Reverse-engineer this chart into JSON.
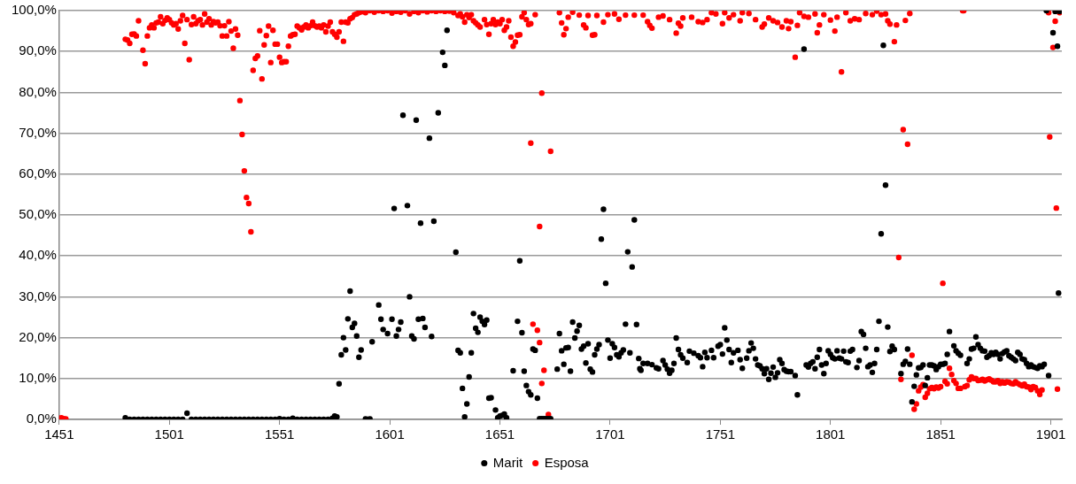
{
  "chart_data": {
    "type": "scatter",
    "xlim": [
      1451,
      1906
    ],
    "xticks": [
      1451,
      1501,
      1551,
      1601,
      1651,
      1701,
      1751,
      1801,
      1851,
      1901
    ],
    "ylim": [
      0,
      100
    ],
    "yticks": [
      {
        "value": 0,
        "label": "0,0%"
      },
      {
        "value": 10,
        "label": "10,0%"
      },
      {
        "value": 20,
        "label": "20,0%"
      },
      {
        "value": 30,
        "label": "30,0%"
      },
      {
        "value": 40,
        "label": "40,0%"
      },
      {
        "value": 50,
        "label": "50,0%"
      },
      {
        "value": 60,
        "label": "60,0%"
      },
      {
        "value": 70,
        "label": "70,0%"
      },
      {
        "value": 80,
        "label": "80,0%"
      },
      {
        "value": 90,
        "label": "90,0%"
      },
      {
        "value": 100,
        "label": "100,0%"
      }
    ],
    "grid": "y",
    "legend": "bottom",
    "marker": "circle",
    "series": [
      {
        "name": "Marit",
        "color": "#000000",
        "x": [
          1481,
          1483,
          1485,
          1487,
          1489,
          1491,
          1493,
          1495,
          1497,
          1499,
          1501,
          1503,
          1505,
          1507,
          1509,
          1511,
          1513,
          1515,
          1517,
          1519,
          1521,
          1523,
          1525,
          1527,
          1529,
          1531,
          1533,
          1535,
          1537,
          1539,
          1541,
          1543,
          1545,
          1547,
          1549,
          1551,
          1553,
          1555,
          1557,
          1559,
          1561,
          1563,
          1565,
          1567,
          1569,
          1571,
          1573,
          1575,
          1576,
          1577,
          1578,
          1579,
          1580,
          1581,
          1582,
          1583,
          1584,
          1585,
          1586,
          1587,
          1588,
          1590,
          1591,
          1592,
          1593,
          1596,
          1597,
          1598,
          1600,
          1602,
          1603,
          1604,
          1605,
          1606,
          1607,
          1609,
          1610,
          1611,
          1612,
          1613,
          1614,
          1615,
          1616,
          1617,
          1619,
          1620,
          1621,
          1623,
          1625,
          1626,
          1627,
          1631,
          1632,
          1633,
          1634,
          1635,
          1636,
          1637,
          1638,
          1639,
          1640,
          1641,
          1642,
          1643,
          1644,
          1645,
          1646,
          1647,
          1649,
          1650,
          1651,
          1652,
          1653,
          1654,
          1657,
          1659,
          1660,
          1661,
          1662,
          1663,
          1664,
          1665,
          1666,
          1667,
          1668,
          1669,
          1670,
          1671,
          1672,
          1673,
          1674,
          1677,
          1678,
          1679,
          1680,
          1681,
          1682,
          1683,
          1684,
          1685,
          1686,
          1687,
          1688,
          1689,
          1690,
          1691,
          1692,
          1693,
          1694,
          1695,
          1696,
          1697,
          1698,
          1699,
          1700,
          1701,
          1702,
          1703,
          1704,
          1705,
          1706,
          1707,
          1708,
          1709,
          1710,
          1711,
          1712,
          1713,
          1714,
          1714.5,
          1715,
          1716,
          1718,
          1720,
          1722,
          1723,
          1725,
          1726,
          1727,
          1728,
          1729,
          1730,
          1731,
          1732,
          1733,
          1734,
          1736,
          1737,
          1739,
          1741,
          1742,
          1743,
          1744,
          1745,
          1747,
          1748,
          1750,
          1751,
          1752,
          1753,
          1754,
          1755,
          1756,
          1757,
          1759,
          1760,
          1761,
          1763,
          1764,
          1765,
          1766,
          1767,
          1768,
          1769,
          1770,
          1771,
          1772,
          1773,
          1774,
          1775,
          1776,
          1777,
          1778,
          1779,
          1780,
          1781,
          1782,
          1783,
          1785,
          1786,
          1789,
          1790,
          1791,
          1792,
          1793,
          1794,
          1795,
          1796,
          1797,
          1798,
          1799,
          1800,
          1801,
          1802,
          1803,
          1804,
          1805,
          1806,
          1807,
          1808,
          1809,
          1810,
          1811,
          1813,
          1814,
          1815,
          1816,
          1817,
          1818,
          1819,
          1820,
          1821,
          1822,
          1823,
          1824,
          1825,
          1826,
          1827,
          1828,
          1829,
          1830,
          1833,
          1834,
          1835,
          1836,
          1837,
          1838,
          1839,
          1840,
          1841,
          1842,
          1843,
          1844,
          1845,
          1846,
          1847,
          1848,
          1849,
          1850,
          1851,
          1852,
          1853,
          1854,
          1855,
          1857,
          1858,
          1859,
          1860,
          1863,
          1864,
          1865,
          1866,
          1867,
          1868,
          1869,
          1870,
          1871,
          1872,
          1873,
          1874,
          1875,
          1876,
          1877,
          1878,
          1879,
          1880,
          1881,
          1882,
          1883,
          1884,
          1885,
          1886,
          1887,
          1888,
          1889,
          1890,
          1891,
          1892,
          1893,
          1894,
          1895,
          1896,
          1897,
          1898,
          1899,
          1900,
          1902,
          1903,
          1904,
          1904.5,
          1905
        ],
        "values": [
          0.4,
          0,
          0,
          0,
          0,
          0,
          0,
          0,
          0,
          0,
          0,
          0,
          0,
          0,
          1.5,
          0,
          0,
          0,
          0,
          0,
          0,
          0,
          0,
          0,
          0,
          0,
          0,
          0,
          0,
          0,
          0,
          0,
          0,
          0,
          0,
          0.2,
          0,
          0,
          0.3,
          0,
          0,
          0,
          0,
          0,
          0,
          0,
          0,
          0.3,
          0.8,
          0.6,
          8.7,
          15.8,
          20,
          17,
          24.6,
          31.4,
          22.5,
          23.5,
          20.4,
          15.2,
          17,
          0.1,
          0,
          0.1,
          19,
          28,
          24.5,
          22,
          21,
          24.5,
          51.6,
          20.4,
          22,
          23.8,
          74.4,
          52.3,
          30,
          20.4,
          19.7,
          73.2,
          24.5,
          48,
          24.7,
          22.5,
          68.8,
          20.3,
          48.5,
          75,
          89.8,
          86.6,
          95.2,
          40.9,
          16.9,
          16.3,
          7.6,
          0.6,
          3.8,
          10.4,
          16.3,
          25.9,
          22.3,
          21.3,
          25,
          24,
          23.2,
          24.3,
          5.2,
          5.3,
          2.3,
          0.4,
          0.8,
          1,
          1.3,
          0.4,
          11.9,
          24,
          38.8,
          21.2,
          11.8,
          8.3,
          6.8,
          6,
          17.2,
          16.9,
          5.2,
          0.2,
          0.2,
          0.2,
          0.2,
          0.2,
          0.2,
          12.3,
          21,
          16.8,
          13.5,
          17.5,
          17.6,
          11.8,
          23.8,
          19.9,
          21.6,
          23,
          17.2,
          17.9,
          13.8,
          18.5,
          12.3,
          11.6,
          15.8,
          17.2,
          18.3,
          44.1,
          51.4,
          33.3,
          19.4,
          15,
          18.5,
          17.6,
          15.8,
          15.3,
          16.3,
          17,
          23.3,
          41,
          16.3,
          37.3,
          48.8,
          23.2,
          14.9,
          12.4,
          12,
          13.7,
          13.7,
          13.4,
          12.6,
          12.4,
          14.4,
          13.3,
          12.3,
          11.3,
          12,
          13.7,
          19.9,
          17.1,
          15.8,
          15,
          13.9,
          16.7,
          16.2,
          15.6,
          15.1,
          12.9,
          16.4,
          15.1,
          16.9,
          15.1,
          17.9,
          18.3,
          16,
          22.4,
          19.4,
          17.1,
          13.9,
          16.3,
          16.9,
          14.6,
          12.5,
          15,
          16.8,
          18.7,
          17.4,
          14.8,
          13.3,
          13.1,
          12.4,
          11.2,
          12.4,
          9.8,
          11.3,
          12.8,
          10.3,
          11.4,
          14.6,
          13.7,
          12.2,
          11.8,
          11.7,
          11.7,
          10.7,
          6,
          90.6,
          13.3,
          12.8,
          13.7,
          14.1,
          12.4,
          15.2,
          17.1,
          13.3,
          11.2,
          13.7,
          16.8,
          15.9,
          15.1,
          14.8,
          16.8,
          15,
          14.8,
          16.7,
          14.1,
          13.9,
          16.7,
          17.1,
          12.7,
          14.4,
          21.5,
          20.8,
          17.4,
          12.9,
          13.3,
          11.5,
          13.7,
          17.1,
          24,
          45.4,
          91.5,
          57.3,
          22.6,
          16.6,
          17.9,
          17.1,
          11.2,
          13.5,
          14.2,
          17.2,
          13.5,
          4.3,
          8.1,
          10.9,
          12.6,
          12.7,
          13.3,
          8.3,
          10.2,
          13.3,
          13.3,
          13.1,
          12.2,
          12.9,
          13.5,
          13.5,
          13.7,
          15.9,
          21.5,
          18,
          16.8,
          16.2,
          15.7,
          13.7,
          14.8,
          17.2,
          17.4,
          20.2,
          18.3,
          17.4,
          16.8,
          16.7,
          15.2,
          15.6,
          16.3,
          15.9,
          16.4,
          15.9,
          14.8,
          16.1,
          16.5,
          16.8,
          15.6,
          15.2,
          14.8,
          14.4,
          16.4,
          15.9,
          14.8,
          14.6,
          13.7,
          12.9,
          13.3,
          12.9,
          12.7,
          12.5,
          13.1,
          12.9,
          13.5,
          100,
          10.7,
          94.6,
          99.8,
          91.3,
          30.9,
          99.8
        ]
      },
      {
        "name": "Esposa",
        "color": "#ff0000",
        "x": [
          1451,
          1452,
          1453,
          1454,
          1481,
          1482,
          1483,
          1484,
          1485,
          1486,
          1487,
          1489,
          1490,
          1491,
          1492,
          1493,
          1494,
          1495,
          1496,
          1497,
          1498,
          1499,
          1500,
          1501,
          1502,
          1503,
          1504,
          1505,
          1506,
          1507,
          1508,
          1509,
          1510,
          1511,
          1512,
          1513,
          1514,
          1515,
          1516,
          1517,
          1518,
          1519,
          1520,
          1521,
          1522,
          1523,
          1524,
          1525,
          1526,
          1527,
          1528,
          1529,
          1530,
          1531,
          1532,
          1533,
          1534,
          1535,
          1536,
          1537,
          1538,
          1539,
          1540,
          1541,
          1542,
          1543,
          1544,
          1545,
          1546,
          1547,
          1548,
          1549,
          1550,
          1551,
          1552,
          1553,
          1554,
          1555,
          1556,
          1557,
          1558,
          1559,
          1560,
          1561,
          1562,
          1563,
          1564,
          1565,
          1566,
          1567,
          1568,
          1569,
          1570,
          1571,
          1572,
          1573,
          1574,
          1575,
          1576,
          1577,
          1578,
          1579,
          1580,
          1581,
          1582,
          1583,
          1584,
          1585,
          1586,
          1587,
          1588,
          1590,
          1592,
          1594,
          1596,
          1598,
          1600,
          1602,
          1604,
          1606,
          1608,
          1610,
          1612,
          1614,
          1616,
          1618,
          1620,
          1622,
          1624,
          1626,
          1628,
          1630,
          1632,
          1633,
          1634,
          1635,
          1636,
          1637,
          1638,
          1639,
          1640,
          1641,
          1642,
          1644,
          1645,
          1646,
          1647,
          1648,
          1649,
          1650,
          1651,
          1652,
          1653,
          1654,
          1655,
          1656,
          1657,
          1658,
          1659,
          1660,
          1661,
          1662,
          1663,
          1664,
          1665,
          1665,
          1666,
          1667,
          1668,
          1669,
          1669,
          1670,
          1670,
          1671,
          1673,
          1674,
          1678,
          1679,
          1680,
          1681,
          1682,
          1684,
          1687,
          1689,
          1690,
          1691,
          1693,
          1694,
          1695,
          1698,
          1700,
          1703,
          1705,
          1708,
          1712,
          1716,
          1718,
          1719,
          1720,
          1723,
          1725,
          1728,
          1731,
          1732,
          1733,
          1734,
          1738,
          1741,
          1743,
          1745,
          1747,
          1749,
          1752,
          1753,
          1755,
          1757,
          1760,
          1761,
          1764,
          1767,
          1770,
          1771,
          1773,
          1775,
          1777,
          1779,
          1781,
          1782,
          1783,
          1785,
          1786,
          1787,
          1789,
          1791,
          1794,
          1795,
          1796,
          1798,
          1801,
          1803,
          1804,
          1806,
          1808,
          1810,
          1812,
          1814,
          1817,
          1820,
          1822,
          1824,
          1826,
          1827,
          1828,
          1830,
          1831,
          1832,
          1833,
          1834,
          1835,
          1836,
          1837,
          1838,
          1839,
          1840,
          1841,
          1842,
          1843,
          1844,
          1845,
          1846,
          1847,
          1848,
          1849,
          1850,
          1851,
          1852,
          1853,
          1854,
          1855,
          1856,
          1857,
          1858,
          1859,
          1860,
          1861,
          1861.5,
          1862,
          1863,
          1864,
          1865,
          1866,
          1867,
          1868,
          1869,
          1870,
          1871,
          1872,
          1873,
          1874,
          1875,
          1876,
          1877,
          1878,
          1879,
          1880,
          1881,
          1882,
          1883,
          1884,
          1885,
          1886,
          1887,
          1888,
          1889,
          1890,
          1891,
          1892,
          1893,
          1894,
          1895,
          1896,
          1897,
          1900,
          1900.5,
          1902,
          1903,
          1903.5,
          1904,
          1905
        ],
        "values": [
          0.3,
          0.4,
          0.2,
          0.1,
          93,
          92.8,
          92,
          94.2,
          94.3,
          93.8,
          97.5,
          90.3,
          87,
          93.8,
          95.8,
          96.5,
          95.8,
          97,
          97.2,
          98.5,
          96.8,
          97.6,
          98.2,
          97.8,
          97,
          96.5,
          96.8,
          95.5,
          97.5,
          98.8,
          92,
          97.8,
          88,
          96.6,
          98.5,
          96.8,
          97.5,
          97.8,
          96.5,
          99.2,
          97.2,
          98,
          96.5,
          97.3,
          97,
          97.2,
          96.3,
          93.8,
          96.3,
          93.8,
          97.3,
          95,
          90.8,
          95.5,
          94,
          78,
          69.7,
          60.8,
          54.3,
          52.8,
          45.9,
          85.4,
          88.3,
          88.9,
          95.1,
          83.3,
          91.6,
          93.9,
          96.2,
          87.3,
          95.2,
          91.8,
          91.8,
          88.6,
          87.3,
          87.5,
          87.5,
          91.3,
          93.8,
          94.1,
          94.2,
          96.2,
          95.8,
          95.3,
          96,
          96.5,
          95.8,
          96.3,
          97.2,
          96.3,
          96,
          96.2,
          95.8,
          96.5,
          94.8,
          96.2,
          97.2,
          94.8,
          94.2,
          93.5,
          94.8,
          97.2,
          92.5,
          97.2,
          97,
          98,
          98.3,
          99,
          99.2,
          99.5,
          99.7,
          99.5,
          100,
          99.6,
          100,
          99.8,
          100,
          99.4,
          99.8,
          99.6,
          100,
          99.2,
          99.8,
          99.5,
          100,
          99.7,
          100,
          99.8,
          100,
          99.8,
          99.9,
          99.5,
          98.8,
          99.2,
          98.5,
          97.2,
          99,
          98.3,
          99,
          97.5,
          97,
          96.5,
          96,
          97.8,
          96.6,
          94.2,
          96.8,
          97.8,
          96.6,
          97.2,
          96.8,
          97.8,
          95.2,
          96,
          97.5,
          93.5,
          91.3,
          92.3,
          94,
          94.1,
          98.5,
          99.5,
          97.8,
          96.6,
          96.8,
          67.6,
          23.3,
          99,
          21.8,
          18.8,
          47.2,
          8.8,
          79.8,
          12,
          1.2,
          65.6,
          99.5,
          97,
          94.1,
          95.6,
          98.4,
          99.6,
          98.9,
          96.5,
          95.8,
          98.8,
          94,
          94.1,
          98.8,
          97.2,
          99,
          99.2,
          97.9,
          98.9,
          98.9,
          98.9,
          97.3,
          96.4,
          95.7,
          98.4,
          98.7,
          97.8,
          94.5,
          96.9,
          96.2,
          98.2,
          98.4,
          97.3,
          97.1,
          97.8,
          99.5,
          99.2,
          96.8,
          99.5,
          98.2,
          99,
          97.5,
          99.5,
          99.3,
          97.8,
          96,
          96.7,
          98.2,
          97.5,
          97.1,
          96,
          97.5,
          95.6,
          97.3,
          88.6,
          96.4,
          99.5,
          98.6,
          98.4,
          99.2,
          94.6,
          96.5,
          99,
          97.7,
          95,
          98.4,
          85,
          99.5,
          97.5,
          98,
          97.8,
          99.3,
          99,
          99.9,
          99,
          99.2,
          97.5,
          96.7,
          92.4,
          96.5,
          39.6,
          9.8,
          70.9,
          97.6,
          67.3,
          99.3,
          15.7,
          2.5,
          3.8,
          7,
          7.9,
          8.5,
          5.4,
          6.4,
          7.5,
          7.8,
          7.5,
          7.9,
          7.7,
          8,
          33.3,
          9.3,
          8.7,
          12.5,
          11,
          9.5,
          8.8,
          7.6,
          7.6,
          100,
          100,
          8,
          8.3,
          9.7,
          10.4,
          10,
          10,
          9.5,
          9.6,
          9.8,
          9.4,
          9.7,
          9.9,
          9.6,
          9.2,
          9.2,
          9.5,
          8.8,
          9.2,
          8.9,
          9.2,
          9.1,
          8.8,
          8.7,
          9.2,
          8.8,
          8.5,
          8.2,
          8.6,
          8,
          7.9,
          7.3,
          8,
          7.8,
          7,
          6.1,
          7.2,
          99.5,
          69.1,
          91,
          97.4,
          51.7,
          7.4,
          99.5
        ]
      }
    ]
  }
}
